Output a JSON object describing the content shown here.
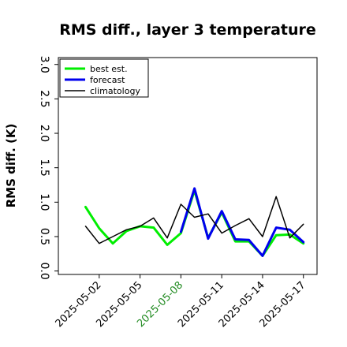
{
  "chart_data": {
    "type": "line",
    "title": "RMS diff., layer 3 temperature",
    "xlabel": "",
    "ylabel": "RMS diff. (K)",
    "ylim": [
      -0.05,
      3.1
    ],
    "yticks": [
      0.0,
      0.5,
      1.0,
      1.5,
      2.0,
      2.5,
      3.0
    ],
    "ytick_labels": [
      "0.0",
      "0.5",
      "1.0",
      "1.5",
      "2.0",
      "2.5",
      "3.0"
    ],
    "x": [
      "2025-05-01",
      "2025-05-02",
      "2025-05-03",
      "2025-05-04",
      "2025-05-05",
      "2025-05-06",
      "2025-05-07",
      "2025-05-08",
      "2025-05-09",
      "2025-05-10",
      "2025-05-11",
      "2025-05-12",
      "2025-05-13",
      "2025-05-14",
      "2025-05-15",
      "2025-05-16",
      "2025-05-17"
    ],
    "xlim": [
      "2025-04-29",
      "2025-05-18"
    ],
    "xticks": [
      {
        "value": "2025-05-02",
        "label": "2025-05-02",
        "color": "#000000"
      },
      {
        "value": "2025-05-05",
        "label": "2025-05-05",
        "color": "#000000"
      },
      {
        "value": "2025-05-08",
        "label": "2025-05-08",
        "color": "#228b22"
      },
      {
        "value": "2025-05-11",
        "label": "2025-05-11",
        "color": "#000000"
      },
      {
        "value": "2025-05-14",
        "label": "2025-05-14",
        "color": "#000000"
      },
      {
        "value": "2025-05-17",
        "label": "2025-05-17",
        "color": "#000000"
      }
    ],
    "series": [
      {
        "name": "best est.",
        "color": "#00ee00",
        "width": 3,
        "values": [
          0.93,
          0.62,
          0.4,
          0.58,
          0.65,
          0.63,
          0.38,
          0.55,
          1.17,
          0.48,
          0.85,
          0.43,
          0.43,
          0.22,
          0.52,
          0.53,
          0.4
        ]
      },
      {
        "name": "forecast",
        "color": "#0000ee",
        "width": 3,
        "values": [
          null,
          null,
          null,
          null,
          null,
          null,
          null,
          0.57,
          1.2,
          0.47,
          0.87,
          0.46,
          0.45,
          0.22,
          0.63,
          0.6,
          0.42
        ]
      },
      {
        "name": "climatology",
        "color": "#000000",
        "width": 1.5,
        "values": [
          0.65,
          0.4,
          0.5,
          0.6,
          0.65,
          0.77,
          0.48,
          0.97,
          0.78,
          0.83,
          0.55,
          0.66,
          0.76,
          0.5,
          1.08,
          0.48,
          0.68
        ]
      }
    ],
    "legend_position": "top-left",
    "grid": false
  }
}
